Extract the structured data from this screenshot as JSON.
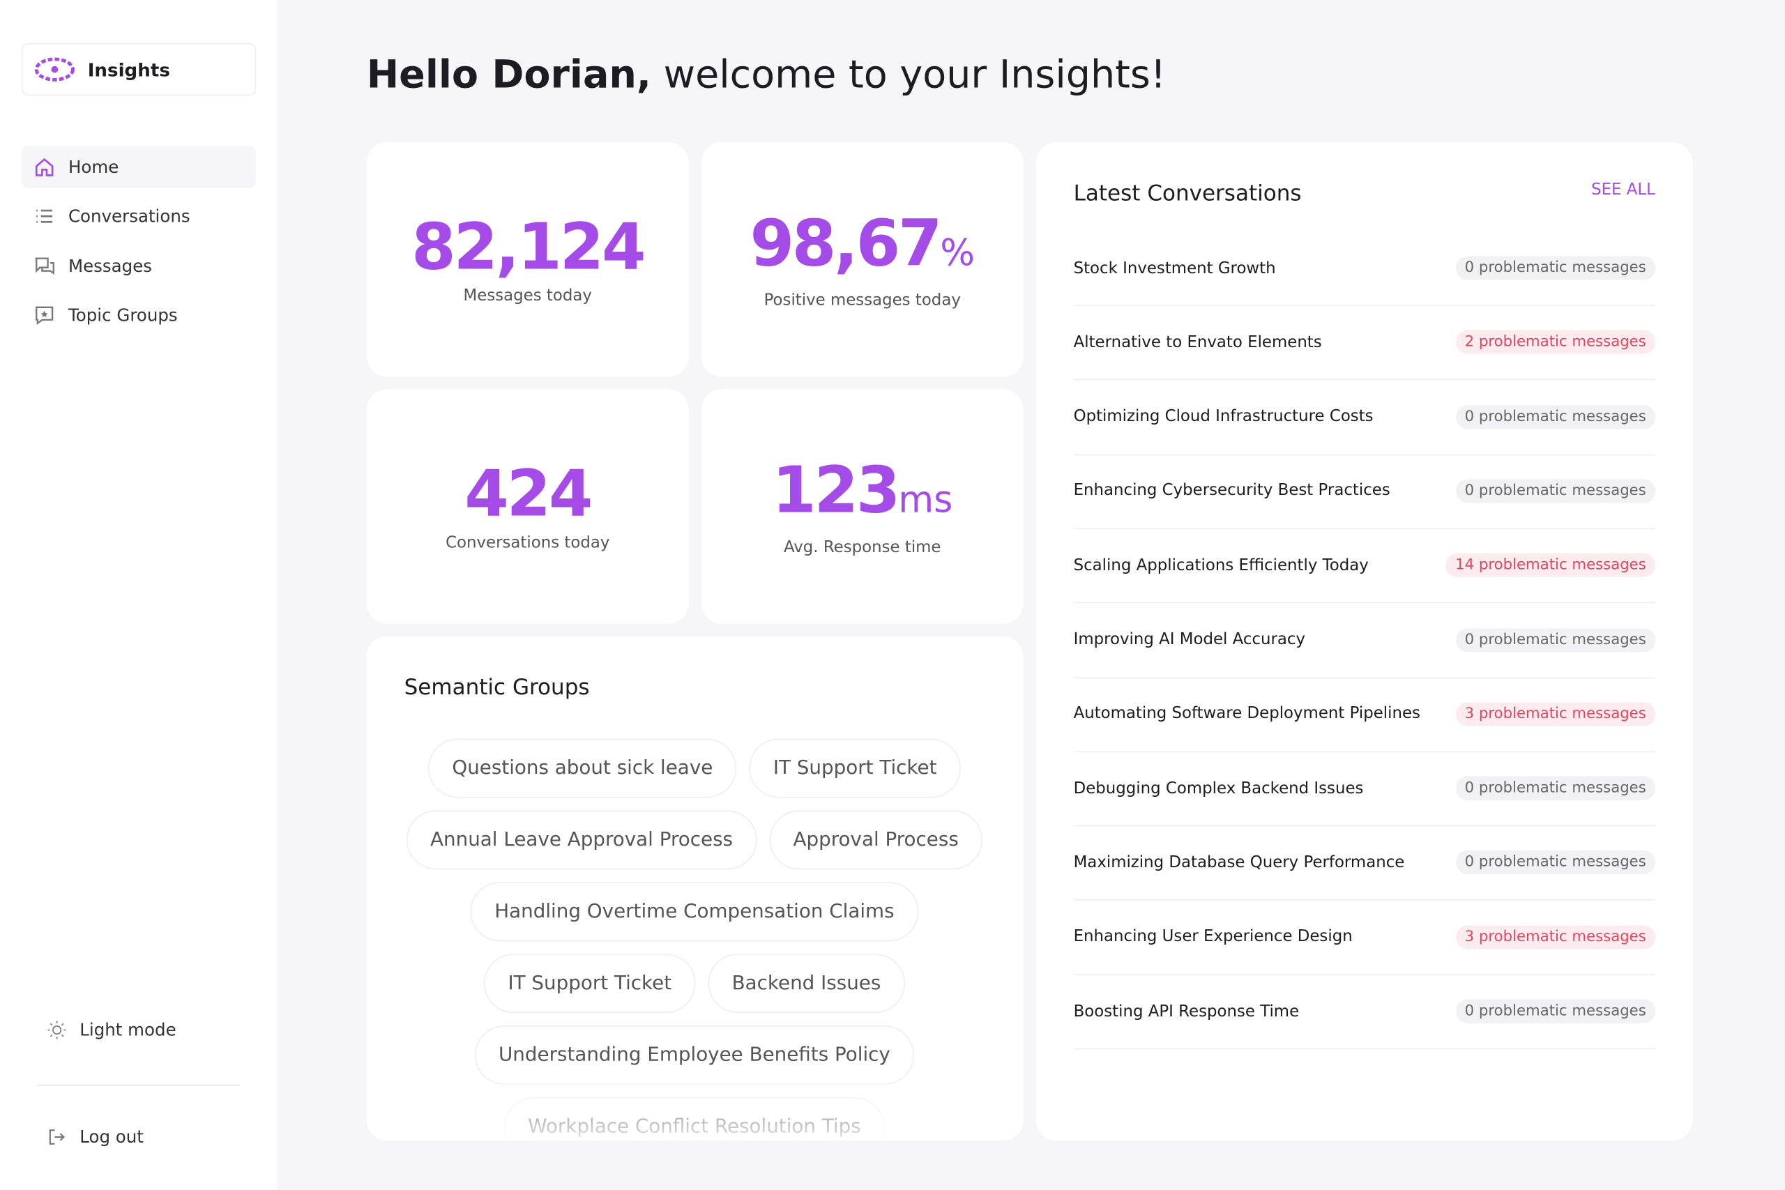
{
  "sidebar": {
    "brand": "Insights",
    "nav": [
      "Home",
      "Conversations",
      "Messages",
      "Topic Groups"
    ],
    "active": 0,
    "theme": "Light mode",
    "logout": "Log out"
  },
  "header": {
    "name": "Hello Dorian,",
    "rest": "welcome to your Insights!"
  },
  "stats": [
    {
      "value": "82,124",
      "label": "Messages today"
    },
    {
      "value": "98,67",
      "unit": "%",
      "label": "Positive messages today"
    },
    {
      "value": "424",
      "label": "Conversations today"
    },
    {
      "value": "123",
      "unit": "ms",
      "label": "Avg. Response time"
    }
  ],
  "semantic_groups": {
    "title": "Semantic Groups",
    "tags": [
      "Questions about sick leave",
      "IT Support Ticket",
      "Annual Leave Approval Process",
      "Approval Process",
      "Handling Overtime Compensation Claims",
      "IT Support Ticket",
      "Backend Issues",
      "Understanding Employee Benefits Policy",
      "Workplace Conflict Resolution Tips"
    ]
  },
  "conversations": {
    "title": "Latest Conversations",
    "see_all": "SEE ALL",
    "rows": [
      {
        "title": "Stock Investment Growth",
        "badge": "0 problematic messages"
      },
      {
        "title": "Alternative to Envato Elements",
        "badge": "2 problematic messages"
      },
      {
        "title": "Optimizing Cloud Infrastructure Costs",
        "badge": "0 problematic messages"
      },
      {
        "title": "Enhancing Cybersecurity Best Practices",
        "badge": "0 problematic messages"
      },
      {
        "title": "Scaling Applications Efficiently Today",
        "badge": "14 problematic messages"
      },
      {
        "title": "Improving AI Model Accuracy",
        "badge": "0 problematic messages"
      },
      {
        "title": "Automating Software Deployment Pipelines",
        "badge": "3 problematic messages"
      },
      {
        "title": "Debugging Complex Backend Issues",
        "badge": "0 problematic messages"
      },
      {
        "title": "Maximizing Database Query Performance",
        "badge": "0 problematic messages"
      },
      {
        "title": "Enhancing User Experience Design",
        "badge": "3 problematic messages"
      },
      {
        "title": "Boosting API Response Time",
        "badge": "0 problematic messages"
      }
    ]
  }
}
